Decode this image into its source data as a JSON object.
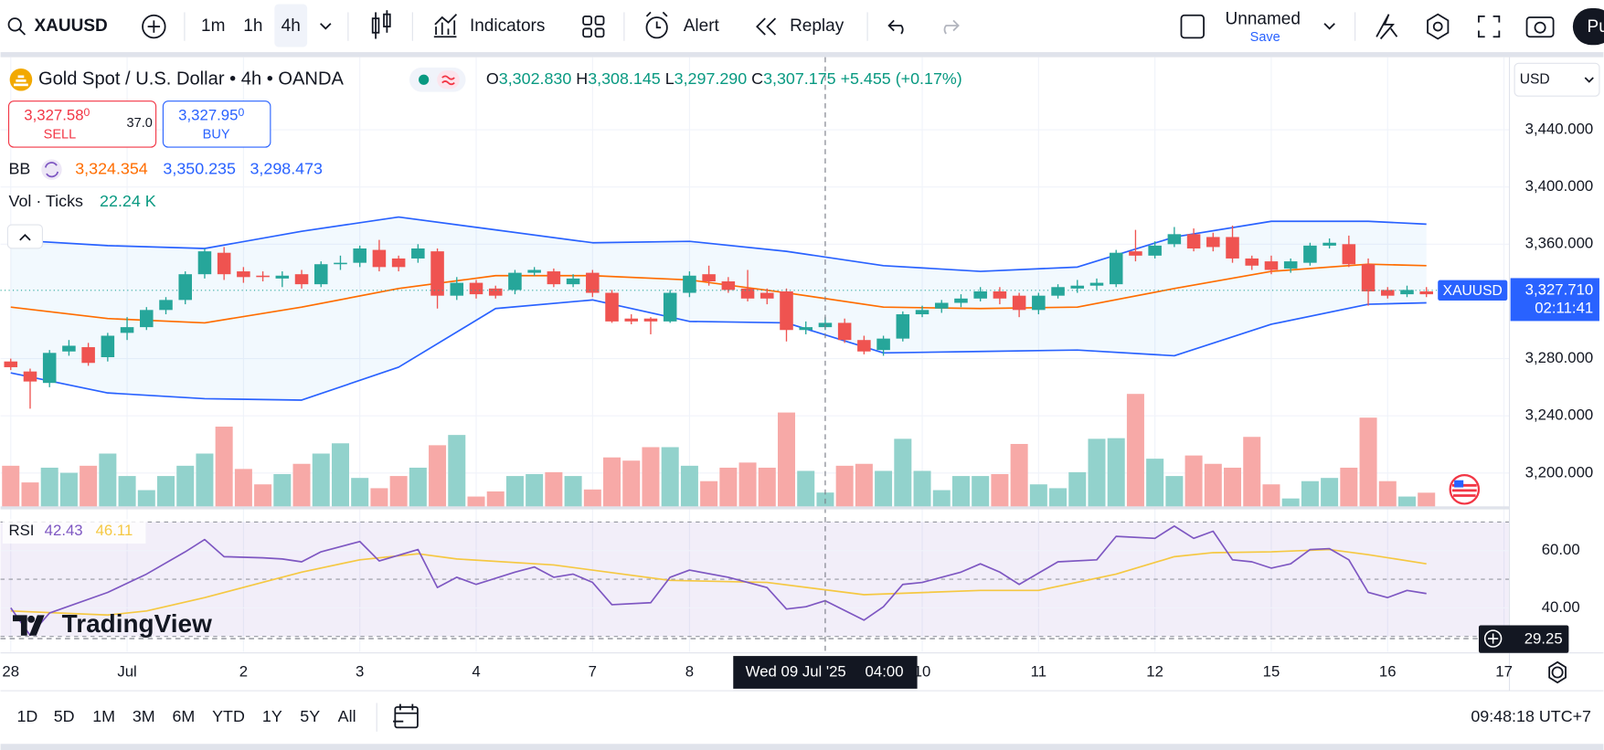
{
  "toolbar": {
    "symbol": "XAUUSD",
    "intervals": [
      "1m",
      "1h",
      "4h"
    ],
    "indicators": "Indicators",
    "alert": "Alert",
    "replay": "Replay",
    "layout": "Unnamed",
    "save": "Save",
    "publish": "Pu"
  },
  "legend": {
    "title": "Gold Spot / U.S. Dollar • 4h • OANDA",
    "ohlc": [
      {
        "key": "O",
        "value": "3,302.830"
      },
      {
        "key": "H",
        "value": "3,308.145"
      },
      {
        "key": "L",
        "value": "3,297.290"
      },
      {
        "key": "C",
        "value": "3,307.175"
      }
    ],
    "change": "+5.455 (+0.17%)",
    "sell": {
      "price": "3,327.58",
      "pip": "0",
      "label": "SELL"
    },
    "spread": "37.0",
    "buy": {
      "price": "3,327.95",
      "pip": "0",
      "label": "BUY"
    },
    "bb": {
      "name": "BB",
      "values": [
        "3,324.354",
        "3,350.235",
        "3,298.473"
      ]
    },
    "volume": {
      "name": "Vol · Ticks",
      "value": "22.24 K"
    },
    "rsi": {
      "name": "RSI",
      "values": [
        "42.43",
        "46.11"
      ]
    }
  },
  "brand": "TradingView",
  "chart_data": {
    "type": "candlestick",
    "up_color": "#26a69a",
    "down_color": "#ef5350",
    "open": [
      3278,
      3271,
      3263,
      3285,
      3288,
      3281,
      3298,
      3302,
      3314,
      3321,
      3339,
      3354,
      3341,
      3338,
      3336,
      3339,
      3332,
      3346,
      3347,
      3356,
      3350,
      3350,
      3355,
      3324,
      3333,
      3329,
      3328,
      3340,
      3341,
      3332,
      3340,
      3326,
      3308,
      3308,
      3306,
      3326,
      3339,
      3334,
      3329,
      3326,
      3327,
      3300,
      3302,
      3305,
      3293,
      3286,
      3294,
      3311,
      3315,
      3319,
      3322,
      3327,
      3324,
      3314,
      3324,
      3329,
      3331,
      3332,
      3355,
      3352,
      3360,
      3367,
      3365,
      3365,
      3350,
      3348,
      3343,
      3347,
      3359,
      3360,
      3346,
      3328,
      3325,
      3327
    ],
    "high": [
      3280,
      3273,
      3286,
      3293,
      3291,
      3298,
      3309,
      3316,
      3323,
      3341,
      3357,
      3358,
      3344,
      3341,
      3341,
      3342,
      3348,
      3352,
      3359,
      3363,
      3352,
      3360,
      3357,
      3337,
      3335,
      3331,
      3342,
      3344,
      3343,
      3339,
      3342,
      3328,
      3311,
      3309,
      3328,
      3341,
      3345,
      3337,
      3342,
      3329,
      3329,
      3306,
      3309,
      3308,
      3296,
      3296,
      3313,
      3317,
      3321,
      3325,
      3330,
      3330,
      3326,
      3326,
      3332,
      3335,
      3336,
      3356,
      3370,
      3362,
      3372,
      3371,
      3368,
      3373,
      3352,
      3352,
      3350,
      3361,
      3364,
      3366,
      3350,
      3330,
      3331,
      3330
    ],
    "low": [
      3272,
      3245,
      3260,
      3282,
      3275,
      3278,
      3293,
      3300,
      3311,
      3318,
      3336,
      3335,
      3333,
      3334,
      3330,
      3329,
      3330,
      3342,
      3344,
      3341,
      3341,
      3347,
      3315,
      3321,
      3322,
      3322,
      3325,
      3338,
      3330,
      3330,
      3323,
      3305,
      3304,
      3297,
      3305,
      3323,
      3331,
      3326,
      3320,
      3318,
      3292,
      3297,
      3300,
      3291,
      3283,
      3282,
      3292,
      3309,
      3312,
      3316,
      3320,
      3318,
      3309,
      3311,
      3322,
      3326,
      3328,
      3330,
      3348,
      3350,
      3358,
      3355,
      3355,
      3347,
      3342,
      3339,
      3340,
      3345,
      3357,
      3344,
      3317,
      3322,
      3323,
      3323
    ],
    "close": [
      3274,
      3264,
      3284,
      3289,
      3277,
      3296,
      3302,
      3314,
      3321,
      3339,
      3355,
      3339,
      3337,
      3337,
      3338,
      3332,
      3346,
      3347,
      3357,
      3344,
      3344,
      3357,
      3324,
      3333,
      3325,
      3324,
      3340,
      3342,
      3332,
      3336,
      3326,
      3306,
      3306,
      3306,
      3326,
      3338,
      3334,
      3328,
      3322,
      3322,
      3300,
      3302,
      3305,
      3293,
      3285,
      3294,
      3311,
      3314,
      3319,
      3322,
      3327,
      3322,
      3314,
      3324,
      3330,
      3331,
      3333,
      3354,
      3352,
      3359,
      3367,
      3357,
      3358,
      3350,
      3345,
      3342,
      3348,
      3359,
      3361,
      3346,
      3327,
      3324,
      3328,
      3325
    ],
    "volume": [
      64,
      38,
      61,
      53,
      64,
      83,
      48,
      26,
      48,
      64,
      83,
      125,
      59,
      35,
      51,
      67,
      83,
      99,
      45,
      29,
      48,
      61,
      96,
      112,
      16,
      24,
      48,
      51,
      54,
      48,
      27,
      77,
      72,
      93,
      93,
      64,
      40,
      61,
      69,
      61,
      147,
      56,
      22.24,
      64,
      67,
      56,
      106,
      56,
      26,
      48,
      48,
      51,
      98,
      35,
      29,
      54,
      106,
      107,
      176,
      75,
      48,
      80,
      67,
      61,
      109,
      35,
      13,
      40,
      45,
      61,
      139,
      40,
      16,
      22
    ],
    "vol_up_color": "#92d2cc",
    "vol_down_color": "#f7a9a7",
    "vlim": [
      0,
      180
    ],
    "bands": {
      "x": [
        0,
        5,
        10,
        15,
        20,
        25,
        30,
        35,
        40,
        45,
        50,
        55,
        60,
        65,
        70,
        73
      ],
      "upper": [
        3363,
        3359,
        3357,
        3369,
        3379,
        3370,
        3361,
        3362,
        3355,
        3345,
        3341,
        3344,
        3365,
        3376,
        3376,
        3374
      ],
      "basis": [
        3316,
        3308,
        3305,
        3316,
        3329,
        3338,
        3338,
        3335,
        3326,
        3316,
        3315,
        3316,
        3329,
        3341,
        3346,
        3345
      ],
      "lower": [
        3270,
        3256,
        3252,
        3251,
        3274,
        3315,
        3321,
        3306,
        3305,
        3284,
        3285,
        3286,
        3282,
        3304,
        3318,
        3319
      ],
      "band_color": "#2962ff",
      "basis_color": "#ff6d00",
      "fill": "rgba(33,150,243,0.06)"
    },
    "ylim": [
      3176.4,
      3490.7
    ],
    "yticks": [
      {
        "value": 3440,
        "label": "3,440.000"
      },
      {
        "value": 3400,
        "label": "3,400.000"
      },
      {
        "value": 3360,
        "label": "3,360.000"
      },
      {
        "value": 3280,
        "label": "3,280.000"
      },
      {
        "value": 3240,
        "label": "3,240.000"
      },
      {
        "value": 3200,
        "label": "3,200.000"
      }
    ],
    "xticks": [
      {
        "value": 0,
        "label": "28"
      },
      {
        "value": 6,
        "label": "Jul"
      },
      {
        "value": 12,
        "label": "2"
      },
      {
        "value": 18,
        "label": "3"
      },
      {
        "value": 24,
        "label": "4"
      },
      {
        "value": 30,
        "label": "7"
      },
      {
        "value": 35,
        "label": "8"
      },
      {
        "value": 47,
        "label": "10"
      },
      {
        "value": 53,
        "label": "11"
      },
      {
        "value": 59,
        "label": "12"
      },
      {
        "value": 65,
        "label": "15"
      },
      {
        "value": 71,
        "label": "16"
      },
      {
        "value": 77,
        "label": "17"
      }
    ],
    "grid": true,
    "last_price": {
      "value": 3327.71,
      "label": "3,327.710"
    },
    "countdown": "02:11:41",
    "symbol_badge": "XAUUSD",
    "currency": "USD",
    "rsi": {
      "x": [
        0,
        1,
        2,
        5,
        7,
        9,
        10,
        11,
        13,
        14,
        15,
        16,
        18,
        19,
        21,
        22,
        23,
        24,
        26,
        27,
        28,
        29,
        30,
        31,
        33,
        34,
        35,
        37,
        39,
        40,
        41,
        42,
        44,
        45,
        46,
        47,
        49,
        50,
        51,
        52,
        54,
        56,
        57,
        59,
        60,
        61,
        62,
        63,
        64,
        65,
        66,
        67,
        68,
        69,
        70,
        71,
        72,
        73
      ],
      "values": [
        40,
        30.4,
        38.2,
        45.4,
        51.8,
        59.6,
        63.9,
        57.9,
        57.5,
        57.1,
        56.1,
        59.6,
        63.2,
        56.4,
        60.4,
        47.1,
        50.7,
        48.2,
        52.5,
        54.3,
        50.7,
        51.8,
        48.9,
        41.1,
        41.8,
        50.7,
        53.2,
        50.7,
        47.1,
        39.6,
        40.4,
        42.5,
        35.7,
        40.4,
        48.2,
        48.9,
        52.5,
        55.4,
        52.5,
        48.2,
        56.1,
        56.8,
        65,
        64.3,
        68.6,
        64.3,
        66.8,
        56.8,
        56.1,
        53.9,
        55.4,
        60.4,
        60.7,
        56.8,
        45.4,
        43.6,
        46.1,
        45
      ],
      "color": "#7e57c2",
      "ma_x": [
        0,
        5,
        7,
        10,
        15,
        18,
        21,
        23,
        28,
        34,
        39,
        44,
        50,
        53,
        57,
        60,
        62,
        65,
        68,
        70,
        73
      ],
      "ma": [
        38.9,
        37.5,
        38.9,
        43.6,
        52.5,
        56.8,
        58.9,
        57.1,
        55,
        49.6,
        48.9,
        44.6,
        46.1,
        46.1,
        51.8,
        57.9,
        59.3,
        59.6,
        60.4,
        58.6,
        55.4
      ],
      "ma_color": "#f5c842",
      "ylim": [
        24.6,
        73.9
      ],
      "yticks": [
        {
          "value": 60,
          "label": "60.00"
        },
        {
          "value": 40,
          "label": "40.00"
        }
      ],
      "levels": [
        70,
        50,
        30
      ]
    },
    "crosshair": {
      "candle": 42,
      "rsi": 29.25,
      "date": "Wed 09 Jul '25",
      "time": "04:00"
    }
  },
  "bottom": {
    "ranges": [
      "1D",
      "5D",
      "1M",
      "3M",
      "6M",
      "YTD",
      "1Y",
      "5Y",
      "All"
    ],
    "clock": "09:48:18 UTC+7"
  }
}
